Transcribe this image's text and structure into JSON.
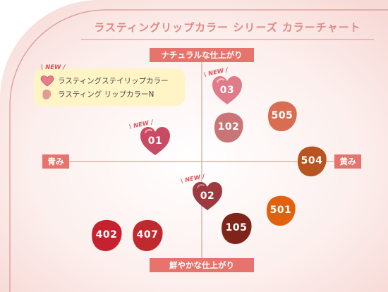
{
  "title": "ラスティングリップカラー シリーズ カラーチャート",
  "axes": {
    "top": "ナチュラルな仕上がり",
    "bottom": "鮮やかな仕上がり",
    "left": "青み",
    "right": "黄み"
  },
  "legend": {
    "new_tag": "NEW",
    "items": [
      {
        "label": "ラスティングステイリップカラー",
        "shape": "heart"
      },
      {
        "label": "ラスティング リップカラーN",
        "shape": "blob"
      }
    ]
  },
  "swatches": [
    {
      "id": "01",
      "shape": "heart",
      "is_new": true,
      "color": "#c94a63"
    },
    {
      "id": "02",
      "shape": "heart",
      "is_new": true,
      "color": "#9e3a3f"
    },
    {
      "id": "03",
      "shape": "heart",
      "is_new": true,
      "color": "#e07b89"
    },
    {
      "id": "102",
      "shape": "blob",
      "is_new": false,
      "color": "#c97575"
    },
    {
      "id": "505",
      "shape": "blob",
      "is_new": false,
      "color": "#d96d52"
    },
    {
      "id": "504",
      "shape": "blob",
      "is_new": false,
      "color": "#b8541f"
    },
    {
      "id": "501",
      "shape": "blob",
      "is_new": false,
      "color": "#e0620f"
    },
    {
      "id": "105",
      "shape": "blob",
      "is_new": false,
      "color": "#7e2418"
    },
    {
      "id": "402",
      "shape": "blob",
      "is_new": false,
      "color": "#c7212f"
    },
    {
      "id": "407",
      "shape": "blob",
      "is_new": false,
      "color": "#bf2a2e"
    }
  ],
  "colors": {
    "accent": "#e6736c",
    "title": "#e08a84",
    "background_panel": "#fbeceb",
    "legend_bg": "#fff4c6",
    "axis_line": "#c9a99a"
  }
}
